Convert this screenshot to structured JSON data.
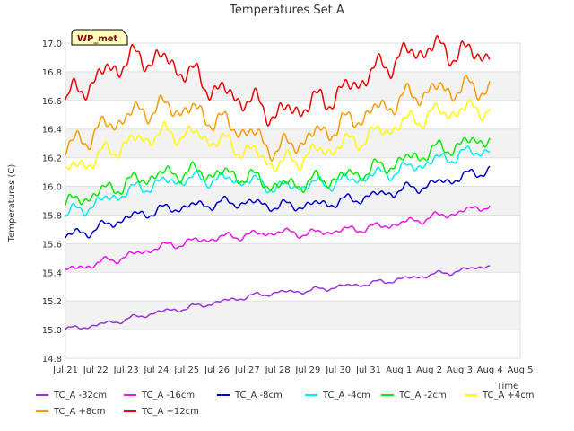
{
  "chart_data": {
    "type": "line",
    "title": "Temperatures Set A",
    "xlabel": "Time",
    "ylabel": "Temperatures (C)",
    "badge": "WP_met",
    "ylim": [
      14.8,
      17.0
    ],
    "yticks": [
      "14.8",
      "15.0",
      "15.2",
      "15.4",
      "15.6",
      "15.8",
      "16.0",
      "16.2",
      "16.4",
      "16.6",
      "16.8",
      "17.0"
    ],
    "xlim": [
      "2023-07-21",
      "2023-08-05"
    ],
    "xticks": [
      "Jul 21",
      "Jul 22",
      "Jul 23",
      "Jul 24",
      "Jul 25",
      "Jul 26",
      "Jul 27",
      "Jul 28",
      "Jul 29",
      "Jul 30",
      "Jul 31",
      "Aug 1",
      "Aug 2",
      "Aug 3",
      "Aug 4",
      "Aug 5"
    ],
    "grid": true,
    "legend_position": "bottom",
    "x": [
      "2023-07-21",
      "2023-07-22",
      "2023-07-23",
      "2023-07-24",
      "2023-07-25",
      "2023-07-26",
      "2023-07-27",
      "2023-07-28",
      "2023-07-29",
      "2023-07-30",
      "2023-07-31",
      "2023-08-01",
      "2023-08-02",
      "2023-08-03",
      "2023-08-04"
    ],
    "series": [
      {
        "name": "TC_A -32cm",
        "color": "#9933dd",
        "values": [
          15.0,
          15.03,
          15.07,
          15.12,
          15.15,
          15.19,
          15.23,
          15.26,
          15.27,
          15.3,
          15.32,
          15.35,
          15.38,
          15.41,
          15.45
        ]
      },
      {
        "name": "TC_A -16cm",
        "color": "#ee11ee",
        "values": [
          15.41,
          15.46,
          15.51,
          15.57,
          15.61,
          15.64,
          15.66,
          15.68,
          15.67,
          15.69,
          15.71,
          15.74,
          15.78,
          15.82,
          15.87
        ]
      },
      {
        "name": "TC_A -8cm",
        "color": "#0000cc",
        "values": [
          15.65,
          15.7,
          15.78,
          15.83,
          15.86,
          15.88,
          15.89,
          15.86,
          15.87,
          15.89,
          15.93,
          15.97,
          16.01,
          16.06,
          16.12
        ]
      },
      {
        "name": "TC_A -4cm",
        "color": "#00eeee",
        "values": [
          15.8,
          15.88,
          15.96,
          16.02,
          16.05,
          16.05,
          16.04,
          15.99,
          16.01,
          16.03,
          16.07,
          16.11,
          16.17,
          16.22,
          16.26
        ]
      },
      {
        "name": "TC_A -2cm",
        "color": "#00ee00",
        "values": [
          15.87,
          15.95,
          16.02,
          16.08,
          16.1,
          16.09,
          16.07,
          16.0,
          16.03,
          16.06,
          16.11,
          16.17,
          16.24,
          16.29,
          16.34
        ]
      },
      {
        "name": "TC_A +4cm",
        "color": "#ffff00",
        "values": [
          16.1,
          16.2,
          16.3,
          16.36,
          16.37,
          16.32,
          16.25,
          16.15,
          16.22,
          16.28,
          16.35,
          16.43,
          16.5,
          16.53,
          16.55
        ]
      },
      {
        "name": "TC_A +8cm",
        "color": "#ff9900",
        "values": [
          16.26,
          16.38,
          16.49,
          16.55,
          16.54,
          16.46,
          16.38,
          16.25,
          16.34,
          16.42,
          16.51,
          16.6,
          16.67,
          16.68,
          16.69
        ]
      },
      {
        "name": "TC_A +12cm",
        "color": "#ee0000",
        "values": [
          16.6,
          16.75,
          16.88,
          16.9,
          16.8,
          16.67,
          16.6,
          16.5,
          16.57,
          16.64,
          16.78,
          16.9,
          16.97,
          16.93,
          16.93
        ]
      }
    ]
  }
}
